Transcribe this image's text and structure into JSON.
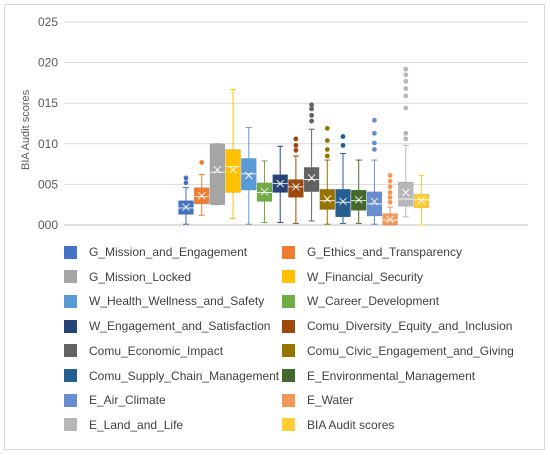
{
  "chart_data": {
    "type": "box",
    "ylabel": "BIA Audit scores",
    "yticks": [
      "000",
      "005",
      "010",
      "015",
      "020",
      "025"
    ],
    "ylim": [
      0,
      0.025
    ],
    "grid": true,
    "legend_position": "bottom",
    "series": [
      {
        "name": "G_Mission_and_Engagement",
        "color": "#4472c4",
        "min": 0.0001,
        "q1": 0.0013,
        "median": 0.0021,
        "q3": 0.003,
        "max": 0.0046,
        "mean": 0.0022,
        "outliers": [
          0.0052,
          0.0058
        ]
      },
      {
        "name": "G_Ethics_and_Transparency",
        "color": "#ed7d31",
        "min": 0.0012,
        "q1": 0.0026,
        "median": 0.0035,
        "q3": 0.0046,
        "max": 0.0062,
        "mean": 0.0036,
        "outliers": [
          0.0077
        ]
      },
      {
        "name": "G_Mission_Locked",
        "color": "#a5a5a5",
        "min": 0.0025,
        "q1": 0.0025,
        "median": 0.0065,
        "q3": 0.01,
        "max": 0.01,
        "mean": 0.0068,
        "outliers": []
      },
      {
        "name": "W_Financial_Security",
        "color": "#ffc000",
        "min": 0.0008,
        "q1": 0.004,
        "median": 0.0072,
        "q3": 0.0093,
        "max": 0.0167,
        "mean": 0.0068,
        "outliers": []
      },
      {
        "name": "W_Health_Wellness_and_Safety",
        "color": "#5b9bd5",
        "min": 0.0001,
        "q1": 0.0043,
        "median": 0.0063,
        "q3": 0.0082,
        "max": 0.012,
        "mean": 0.0061,
        "outliers": []
      },
      {
        "name": "W_Career_Development",
        "color": "#70ad47",
        "min": 0.0003,
        "q1": 0.0029,
        "median": 0.004,
        "q3": 0.0052,
        "max": 0.0079,
        "mean": 0.0041,
        "outliers": []
      },
      {
        "name": "W_Engagement_and_Satisfaction",
        "color": "#264478",
        "min": 0.0003,
        "q1": 0.004,
        "median": 0.0051,
        "q3": 0.0062,
        "max": 0.0097,
        "mean": 0.0051,
        "outliers": []
      },
      {
        "name": "Comu_Diversity_Equity_and_Inclusion",
        "color": "#9e480e",
        "min": 0.0002,
        "q1": 0.0034,
        "median": 0.0047,
        "q3": 0.0056,
        "max": 0.0085,
        "mean": 0.0047,
        "outliers": [
          0.0092,
          0.0098,
          0.0106
        ]
      },
      {
        "name": "Comu_Economic_Impact",
        "color": "#636363",
        "min": 0.0005,
        "q1": 0.0041,
        "median": 0.0056,
        "q3": 0.0071,
        "max": 0.0118,
        "mean": 0.0058,
        "outliers": [
          0.0128,
          0.0135,
          0.0143,
          0.0148
        ]
      },
      {
        "name": "Comu_Civic_Engagement_and_Giving",
        "color": "#997300",
        "min": 0.0001,
        "q1": 0.0019,
        "median": 0.003,
        "q3": 0.0044,
        "max": 0.008,
        "mean": 0.0032,
        "outliers": [
          0.0085,
          0.0093,
          0.0104,
          0.0119
        ]
      },
      {
        "name": "Comu_Supply_Chain_Management",
        "color": "#255e91",
        "min": 0.0002,
        "q1": 0.001,
        "median": 0.0028,
        "q3": 0.0044,
        "max": 0.0088,
        "mean": 0.0029,
        "outliers": [
          0.0098,
          0.0109
        ]
      },
      {
        "name": "E_Environmental_Management",
        "color": "#43682b",
        "min": 0.0002,
        "q1": 0.0018,
        "median": 0.003,
        "q3": 0.0043,
        "max": 0.008,
        "mean": 0.0031,
        "outliers": []
      },
      {
        "name": "E_Air_Climate",
        "color": "#698ed0",
        "min": 0.0001,
        "q1": 0.0011,
        "median": 0.0026,
        "q3": 0.0041,
        "max": 0.008,
        "mean": 0.0029,
        "outliers": [
          0.0093,
          0.0101,
          0.0113,
          0.0129
        ]
      },
      {
        "name": "E_Water",
        "color": "#f1975a",
        "min": 0.0,
        "q1": 0.0,
        "median": 0.0006,
        "q3": 0.0014,
        "max": 0.0022,
        "mean": 0.0007,
        "outliers": [
          0.0028,
          0.0034,
          0.004,
          0.0047,
          0.0054,
          0.0061
        ]
      },
      {
        "name": "E_Land_and_Life",
        "color": "#b7b7b7",
        "min": 0.001,
        "q1": 0.0023,
        "median": 0.0032,
        "q3": 0.0053,
        "max": 0.0098,
        "mean": 0.004,
        "outliers": [
          0.0106,
          0.0113,
          0.0144,
          0.0159,
          0.0168,
          0.0177,
          0.0185,
          0.0192
        ]
      },
      {
        "name": "BIA Audit scores",
        "color": "#ffcd33",
        "min": 0.0,
        "q1": 0.0021,
        "median": 0.0031,
        "q3": 0.0038,
        "max": 0.0061,
        "mean": 0.003,
        "outliers": []
      }
    ]
  }
}
